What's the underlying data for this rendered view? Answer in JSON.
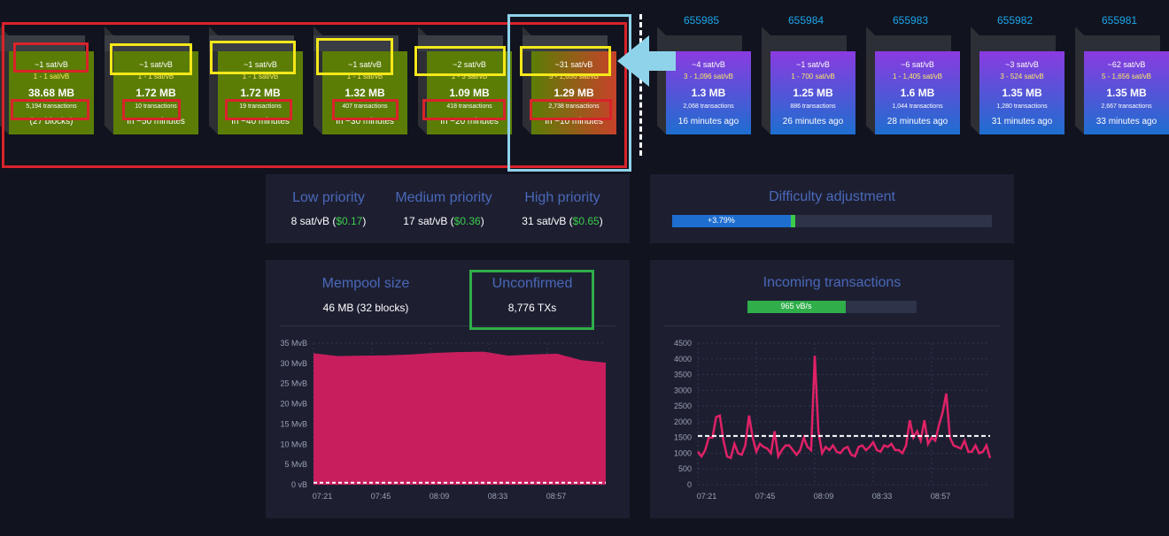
{
  "mempool_blocks": [
    {
      "fee_median": "~1 sat/vB",
      "fee_range": "1 - 1 sat/vB",
      "size": "38.68 MB",
      "txs": "5,194 transactions",
      "eta": "(27 blocks)"
    },
    {
      "fee_median": "~1 sat/vB",
      "fee_range": "1 - 1 sat/vB",
      "size": "1.72 MB",
      "txs": "10 transactions",
      "eta": "In ~50 minutes"
    },
    {
      "fee_median": "~1 sat/vB",
      "fee_range": "1 - 1 sat/vB",
      "size": "1.72 MB",
      "txs": "19 transactions",
      "eta": "In ~40 minutes"
    },
    {
      "fee_median": "~1 sat/vB",
      "fee_range": "1 - 1 sat/vB",
      "size": "1.32 MB",
      "txs": "407 transactions",
      "eta": "In ~30 minutes"
    },
    {
      "fee_median": "~2 sat/vB",
      "fee_range": "1 - 3 sat/vB",
      "size": "1.09 MB",
      "txs": "418 transactions",
      "eta": "In ~20 minutes"
    },
    {
      "fee_median": "~31 sat/vB",
      "fee_range": "5 - 1,656 sat/vB",
      "size": "1.29 MB",
      "txs": "2,738 transactions",
      "eta": "In ~10 minutes"
    }
  ],
  "confirmed_blocks": [
    {
      "height": "655985",
      "fee_median": "~4 sat/vB",
      "fee_range": "3 - 1,096 sat/vB",
      "size": "1.3 MB",
      "txs": "2,068 transactions",
      "age": "16 minutes ago"
    },
    {
      "height": "655984",
      "fee_median": "~1 sat/vB",
      "fee_range": "1 - 700 sat/vB",
      "size": "1.25 MB",
      "txs": "886 transactions",
      "age": "26 minutes ago"
    },
    {
      "height": "655983",
      "fee_median": "~6 sat/vB",
      "fee_range": "1 - 1,405 sat/vB",
      "size": "1.6 MB",
      "txs": "1,044 transactions",
      "age": "28 minutes ago"
    },
    {
      "height": "655982",
      "fee_median": "~3 sat/vB",
      "fee_range": "3 - 524 sat/vB",
      "size": "1.35 MB",
      "txs": "1,280 transactions",
      "age": "31 minutes ago"
    },
    {
      "height": "655981",
      "fee_median": "~62 sat/vB",
      "fee_range": "5 - 1,656 sat/vB",
      "size": "1.35 MB",
      "txs": "2,667 transactions",
      "age": "33 minutes ago"
    }
  ],
  "fees": {
    "low": {
      "label": "Low priority",
      "sat": "8 sat/vB (",
      "usd": "$0.17",
      "close": ")"
    },
    "medium": {
      "label": "Medium priority",
      "sat": "17 sat/vB (",
      "usd": "$0.36",
      "close": ")"
    },
    "high": {
      "label": "High priority",
      "sat": "31 sat/vB (",
      "usd": "$0.65",
      "close": ")"
    }
  },
  "difficulty": {
    "title": "Difficulty adjustment",
    "change": "+3.79%",
    "progress": 0.37
  },
  "mempool": {
    "size_label": "Mempool size",
    "size_value": "46 MB (32 blocks)",
    "unconfirmed_label": "Unconfirmed",
    "unconfirmed_value": "8,776 TXs"
  },
  "incoming": {
    "title": "Incoming transactions",
    "rate": "965 vB/s",
    "progress": 0.58
  },
  "colors": {
    "mempool_green": "#5b7d05",
    "confirmed_top": "#8a3be0",
    "confirmed_bottom": "#1e6ed0",
    "chart_fill": "#c81e5e",
    "annotation_red": "#d9232a",
    "annotation_yellow": "#f5e71a",
    "annotation_blue": "#8fd3ea",
    "annotation_green": "#2fae4a"
  },
  "chart_data": [
    {
      "type": "area",
      "title": "",
      "x_ticks": [
        "07:21",
        "07:45",
        "08:09",
        "08:33",
        "08:57"
      ],
      "y_ticks": [
        "35 MvB",
        "30 MvB",
        "25 MvB",
        "20 MvB",
        "15 MvB",
        "10 MvB",
        "5 MvB",
        "0 vB"
      ],
      "ylim": [
        0,
        35
      ],
      "x": [
        0,
        1,
        2,
        3,
        4,
        5,
        6,
        7,
        8,
        9,
        10,
        11,
        12
      ],
      "series": [
        {
          "values": [
            32.5,
            31.8,
            31.9,
            32.0,
            32.2,
            32.6,
            32.8,
            32.9,
            31.9,
            32.2,
            32.4,
            30.8,
            30.2
          ]
        }
      ],
      "min_fee_line": 0.5
    },
    {
      "type": "line",
      "title": "",
      "x_ticks": [
        "07:21",
        "07:45",
        "08:09",
        "08:33",
        "08:57"
      ],
      "y_ticks": [
        "4500",
        "4000",
        "3500",
        "3000",
        "2500",
        "2000",
        "1500",
        "1000",
        "500",
        "0"
      ],
      "ylim": [
        0,
        4500
      ],
      "series": [
        {
          "values": [
            1050,
            900,
            1100,
            1500,
            1500,
            2150,
            2200,
            1400,
            900,
            850,
            1300,
            1000,
            950,
            1250,
            2200,
            1500,
            1050,
            1300,
            1200,
            1150,
            1000,
            1700,
            900,
            1100,
            1250,
            1250,
            1100,
            950,
            1100,
            1500,
            1200,
            1100,
            4100,
            1700,
            1000,
            1200,
            1100,
            1250,
            1050,
            1000,
            1150,
            1200,
            950,
            900,
            1200,
            1250,
            1100,
            1200,
            1350,
            1100,
            1050,
            1250,
            1200,
            1300,
            1100,
            1100,
            1000,
            1250,
            2050,
            1500,
            1700,
            1400,
            2050,
            1300,
            1500,
            1400,
            1900,
            2300,
            2900,
            1500,
            1250,
            1200,
            1150,
            1400,
            1050,
            1050,
            1250,
            1000,
            1050,
            1250,
            850
          ]
        }
      ],
      "reference_line": 1550
    }
  ]
}
